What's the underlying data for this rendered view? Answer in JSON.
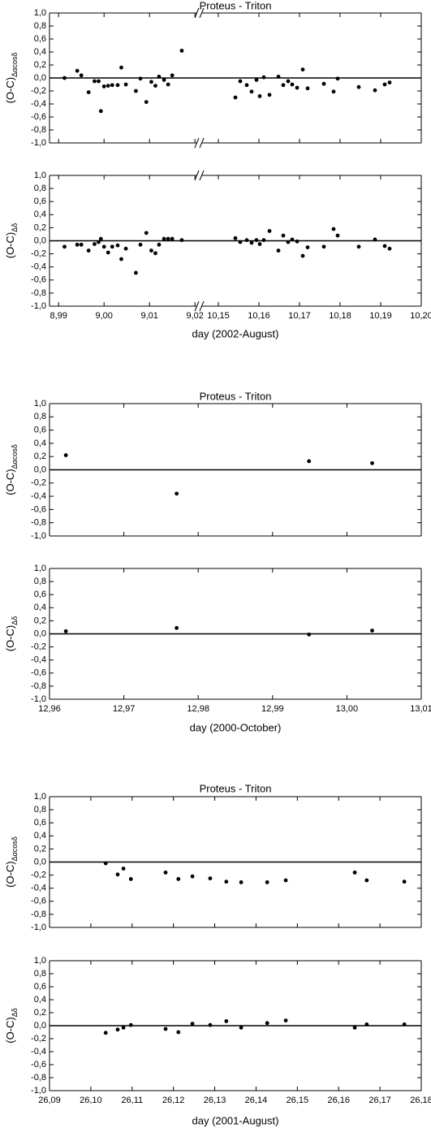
{
  "chart_data": [
    {
      "type": "scatter",
      "title": "Proteus - Triton",
      "xlabel": "day (2002-August)",
      "x_segments": [
        {
          "xlim": [
            8.988,
            9.0205
          ],
          "xticks": [
            {
              "value": 8.99,
              "label": "8,99"
            },
            {
              "value": 9.0,
              "label": "9,00"
            },
            {
              "value": 9.01,
              "label": "9,01"
            },
            {
              "value": 9.02,
              "label": "9,02"
            }
          ]
        },
        {
          "xlim": [
            10.1458,
            10.2
          ],
          "xticks": [
            {
              "value": 10.15,
              "label": "10,15"
            },
            {
              "value": 10.16,
              "label": "10,16"
            },
            {
              "value": 10.17,
              "label": "10,17"
            },
            {
              "value": 10.18,
              "label": "10,18"
            },
            {
              "value": 10.19,
              "label": "10,19"
            },
            {
              "value": 10.2,
              "label": "10,20"
            }
          ]
        }
      ],
      "ylim": [
        -1,
        1
      ],
      "yticks": [
        {
          "value": 1,
          "label": "1,0"
        },
        {
          "value": 0.8,
          "label": "0,8"
        },
        {
          "value": 0.6,
          "label": "0,6"
        },
        {
          "value": 0.4,
          "label": "0,4"
        },
        {
          "value": 0.2,
          "label": "0,2"
        },
        {
          "value": 0,
          "label": "0,0"
        },
        {
          "value": -0.2,
          "label": "-0,2"
        },
        {
          "value": -0.4,
          "label": "-0,4"
        },
        {
          "value": -0.6,
          "label": "-0,6"
        },
        {
          "value": -0.8,
          "label": "-0,8"
        },
        {
          "value": -1,
          "label": "-1,0"
        }
      ],
      "x": [
        8.9913,
        8.9941,
        8.995,
        8.9966,
        8.9979,
        8.9988,
        8.9993,
        9.0,
        9.0009,
        9.0018,
        9.003,
        9.0038,
        9.0048,
        9.007,
        9.008,
        9.0093,
        9.0104,
        9.0113,
        9.0121,
        9.0132,
        9.0141,
        9.015,
        9.0171,
        10.1542,
        10.1554,
        10.157,
        10.1582,
        10.1594,
        10.1602,
        10.1612,
        10.1626,
        10.1648,
        10.166,
        10.1672,
        10.1682,
        10.1694,
        10.1708,
        10.172,
        10.176,
        10.1784,
        10.1794,
        10.1846,
        10.1886,
        10.191,
        10.1922
      ],
      "panels": [
        {
          "ylabel": "(O-C)",
          "ylabel_sub": "Δαcosδ",
          "values": [
            0.0,
            0.11,
            0.04,
            -0.22,
            -0.05,
            -0.05,
            -0.51,
            -0.13,
            -0.12,
            -0.11,
            -0.11,
            0.16,
            -0.1,
            -0.2,
            -0.01,
            -0.37,
            -0.06,
            -0.12,
            0.02,
            -0.03,
            -0.1,
            0.04,
            0.42,
            -0.3,
            -0.05,
            -0.11,
            -0.21,
            -0.03,
            -0.28,
            0.01,
            -0.26,
            0.02,
            -0.11,
            -0.05,
            -0.1,
            -0.15,
            0.13,
            -0.16,
            -0.09,
            -0.21,
            -0.01,
            -0.14,
            -0.19,
            -0.1,
            -0.07
          ]
        },
        {
          "ylabel": "(O-C)",
          "ylabel_sub": "Δδ",
          "values": [
            -0.09,
            -0.06,
            -0.06,
            -0.15,
            -0.05,
            -0.02,
            0.03,
            -0.09,
            -0.18,
            -0.09,
            -0.07,
            -0.28,
            -0.12,
            -0.49,
            -0.06,
            0.12,
            -0.15,
            -0.19,
            -0.06,
            0.03,
            0.03,
            0.03,
            0.01,
            0.04,
            -0.02,
            0.01,
            -0.03,
            0.01,
            -0.05,
            0.01,
            0.15,
            -0.15,
            0.08,
            -0.02,
            0.02,
            -0.01,
            -0.23,
            -0.1,
            -0.09,
            0.18,
            0.08,
            -0.09,
            0.02,
            -0.08,
            -0.12
          ]
        }
      ]
    },
    {
      "type": "scatter",
      "title": "Proteus - Triton",
      "xlabel": "day (2000-October)",
      "x_segments": [
        {
          "xlim": [
            12.96,
            13.01
          ],
          "xticks": [
            {
              "value": 12.96,
              "label": "12,96"
            },
            {
              "value": 12.97,
              "label": "12,97"
            },
            {
              "value": 12.98,
              "label": "12,98"
            },
            {
              "value": 12.99,
              "label": "12,99"
            },
            {
              "value": 13.0,
              "label": "13,00"
            },
            {
              "value": 13.01,
              "label": "13,01"
            }
          ]
        }
      ],
      "ylim": [
        -1,
        1
      ],
      "yticks": [
        {
          "value": 1,
          "label": "1,0"
        },
        {
          "value": 0.8,
          "label": "0,8"
        },
        {
          "value": 0.6,
          "label": "0,6"
        },
        {
          "value": 0.4,
          "label": "0,4"
        },
        {
          "value": 0.2,
          "label": "0,2"
        },
        {
          "value": 0,
          "label": "0,0"
        },
        {
          "value": -0.2,
          "label": "-0,2"
        },
        {
          "value": -0.4,
          "label": "-0,4"
        },
        {
          "value": -0.6,
          "label": "-0,6"
        },
        {
          "value": -0.8,
          "label": "-0,8"
        },
        {
          "value": -1,
          "label": "-1,0"
        }
      ],
      "x": [
        12.9622,
        12.9771,
        12.9949,
        13.0034
      ],
      "panels": [
        {
          "ylabel": "(O-C)",
          "ylabel_sub": "Δαcosδ",
          "values": [
            0.22,
            -0.36,
            0.13,
            0.1
          ]
        },
        {
          "ylabel": "(O-C)",
          "ylabel_sub": "Δδ",
          "values": [
            0.04,
            0.09,
            -0.01,
            0.05
          ]
        }
      ]
    },
    {
      "type": "scatter",
      "title": "Proteus - Triton",
      "xlabel": "day (2001-August)",
      "x_segments": [
        {
          "xlim": [
            26.09,
            26.18
          ],
          "xticks": [
            {
              "value": 26.09,
              "label": "26,09"
            },
            {
              "value": 26.1,
              "label": "26,10"
            },
            {
              "value": 26.11,
              "label": "26,11"
            },
            {
              "value": 26.12,
              "label": "26,12"
            },
            {
              "value": 26.13,
              "label": "26,13"
            },
            {
              "value": 26.14,
              "label": "26,14"
            },
            {
              "value": 26.15,
              "label": "26,15"
            },
            {
              "value": 26.16,
              "label": "26,16"
            },
            {
              "value": 26.17,
              "label": "26,17"
            },
            {
              "value": 26.18,
              "label": "26,18"
            }
          ]
        }
      ],
      "ylim": [
        -1,
        1
      ],
      "yticks": [
        {
          "value": 1,
          "label": "1,0"
        },
        {
          "value": 0.8,
          "label": "0,8"
        },
        {
          "value": 0.6,
          "label": "0,6"
        },
        {
          "value": 0.4,
          "label": "0,4"
        },
        {
          "value": 0.2,
          "label": "0,2"
        },
        {
          "value": 0,
          "label": "0,0"
        },
        {
          "value": -0.2,
          "label": "-0,2"
        },
        {
          "value": -0.4,
          "label": "-0,4"
        },
        {
          "value": -0.6,
          "label": "-0,6"
        },
        {
          "value": -0.8,
          "label": "-0,8"
        },
        {
          "value": -1,
          "label": "-1,0"
        }
      ],
      "x": [
        26.1036,
        26.1065,
        26.1079,
        26.1097,
        26.1181,
        26.1212,
        26.1246,
        26.1289,
        26.1328,
        26.1364,
        26.1427,
        26.1472,
        26.1639,
        26.1668,
        26.1759
      ],
      "panels": [
        {
          "ylabel": "(O-C)",
          "ylabel_sub": "Δαcosδ",
          "values": [
            -0.02,
            -0.19,
            -0.1,
            -0.26,
            -0.16,
            -0.26,
            -0.22,
            -0.25,
            -0.3,
            -0.31,
            -0.31,
            -0.28,
            -0.16,
            -0.28,
            -0.3
          ]
        },
        {
          "ylabel": "(O-C)",
          "ylabel_sub": "Δδ",
          "values": [
            -0.11,
            -0.06,
            -0.03,
            0.01,
            -0.05,
            -0.1,
            0.03,
            0.01,
            0.07,
            -0.03,
            0.04,
            0.08,
            -0.03,
            0.02,
            0.02
          ]
        }
      ]
    }
  ]
}
